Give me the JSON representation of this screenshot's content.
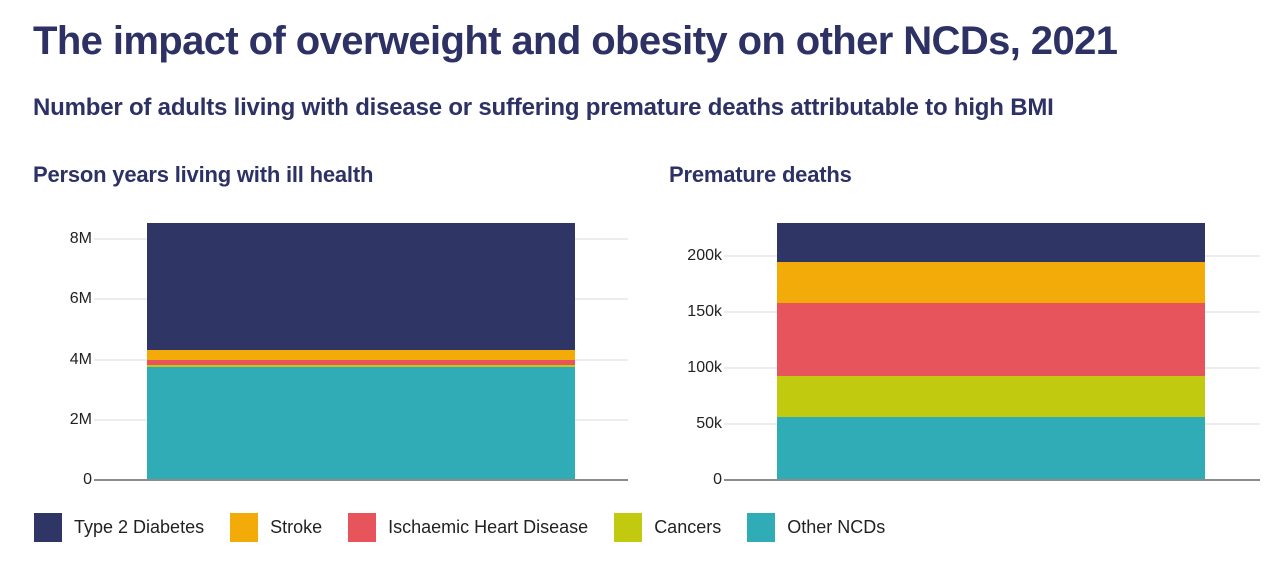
{
  "header": {
    "title": "The impact of overweight and obesity on other NCDs, 2021",
    "subtitle": "Number of adults living with disease or suffering premature deaths attributable to high BMI"
  },
  "colors": {
    "heading": "#2D3164",
    "text": "#222222",
    "axis": "#8C8C8C",
    "gridline": "#EDEDED",
    "background": "#FFFFFF"
  },
  "legend": {
    "items": [
      {
        "label": "Type 2 Diabetes",
        "color": "#2F3564"
      },
      {
        "label": "Stroke",
        "color": "#F3AB09"
      },
      {
        "label": "Ischaemic Heart Disease",
        "color": "#E8545C"
      },
      {
        "label": "Cancers",
        "color": "#C2CA10"
      },
      {
        "label": "Other NCDs",
        "color": "#2FACB5"
      }
    ]
  },
  "chart_data": [
    {
      "type": "bar",
      "variant": "single-stacked-column",
      "title": "Person years living with ill health",
      "unit": "person-years",
      "grid": "horizontal",
      "legend_position": "bottom",
      "ylim": [
        0,
        8530000
      ],
      "y_ticks": [
        {
          "value": 0,
          "label": "0"
        },
        {
          "value": 2000000,
          "label": "2M"
        },
        {
          "value": 4000000,
          "label": "4M"
        },
        {
          "value": 6000000,
          "label": "6M"
        },
        {
          "value": 8000000,
          "label": "8M"
        }
      ],
      "stack_order_bottom_to_top": [
        "Other NCDs",
        "Cancers",
        "Ischaemic Heart Disease",
        "Stroke",
        "Type 2 Diabetes"
      ],
      "series": [
        {
          "name": "Type 2 Diabetes",
          "value": 4230000
        },
        {
          "name": "Stroke",
          "value": 330000
        },
        {
          "name": "Ischaemic Heart Disease",
          "value": 140000
        },
        {
          "name": "Cancers",
          "value": 70000
        },
        {
          "name": "Other NCDs",
          "value": 3760000
        }
      ],
      "total": 8530000
    },
    {
      "type": "bar",
      "variant": "single-stacked-column",
      "title": "Premature deaths",
      "unit": "deaths",
      "grid": "horizontal",
      "legend_position": "bottom",
      "ylim": [
        0,
        229000
      ],
      "y_ticks": [
        {
          "value": 0,
          "label": "0"
        },
        {
          "value": 50000,
          "label": "50k"
        },
        {
          "value": 100000,
          "label": "100k"
        },
        {
          "value": 150000,
          "label": "150k"
        },
        {
          "value": 200000,
          "label": "200k"
        }
      ],
      "stack_order_bottom_to_top": [
        "Other NCDs",
        "Cancers",
        "Ischaemic Heart Disease",
        "Stroke",
        "Type 2 Diabetes"
      ],
      "series": [
        {
          "name": "Type 2 Diabetes",
          "value": 35000
        },
        {
          "name": "Stroke",
          "value": 36500
        },
        {
          "name": "Ischaemic Heart Disease",
          "value": 65000
        },
        {
          "name": "Cancers",
          "value": 36000
        },
        {
          "name": "Other NCDs",
          "value": 56500
        }
      ],
      "total": 229000
    }
  ]
}
